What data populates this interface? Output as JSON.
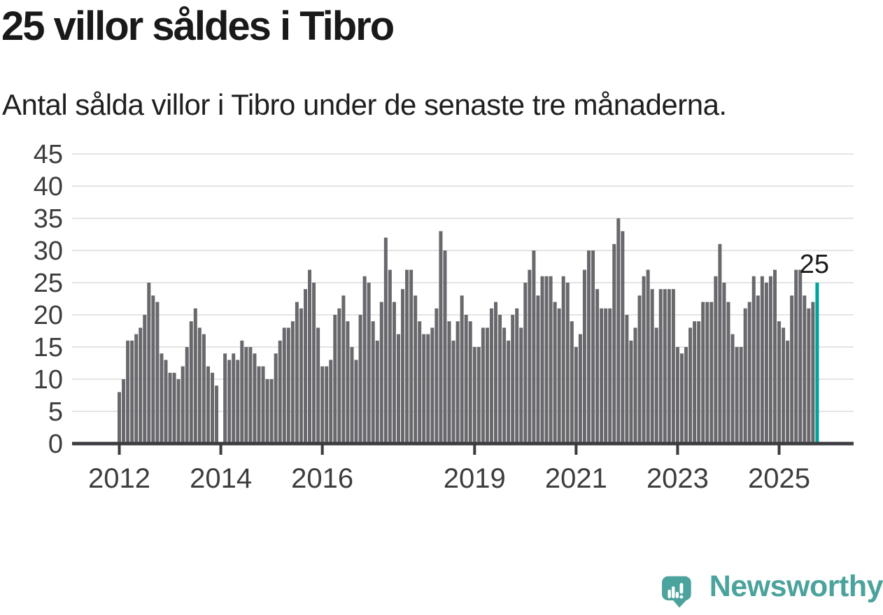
{
  "chart_data": {
    "type": "bar",
    "title": "25 villor såldes i Tibro",
    "subtitle": "Antal sålda villor i Tibro under de senaste tre månaderna.",
    "x_start": "2012-01",
    "frequency": "monthly",
    "values": [
      8,
      10,
      16,
      16,
      17,
      18,
      20,
      25,
      23,
      22,
      14,
      13,
      11,
      11,
      10,
      12,
      15,
      19,
      21,
      18,
      17,
      12,
      11,
      9,
      0,
      14,
      13,
      14,
      13,
      16,
      15,
      15,
      14,
      12,
      12,
      10,
      10,
      14,
      16,
      18,
      18,
      19,
      22,
      21,
      24,
      27,
      25,
      18,
      12,
      12,
      13,
      20,
      21,
      23,
      19,
      15,
      13,
      20,
      26,
      25,
      19,
      16,
      22,
      32,
      27,
      22,
      17,
      24,
      27,
      27,
      23,
      19,
      17,
      17,
      18,
      21,
      33,
      30,
      19,
      16,
      19,
      23,
      20,
      19,
      15,
      15,
      18,
      18,
      21,
      22,
      20,
      18,
      16,
      20,
      21,
      18,
      25,
      27,
      30,
      23,
      26,
      26,
      26,
      22,
      21,
      26,
      25,
      19,
      15,
      17,
      27,
      30,
      30,
      24,
      21,
      21,
      21,
      31,
      35,
      33,
      20,
      16,
      18,
      23,
      26,
      27,
      24,
      18,
      24,
      24,
      24,
      24,
      15,
      14,
      15,
      18,
      19,
      19,
      22,
      22,
      22,
      26,
      31,
      25,
      22,
      17,
      15,
      15,
      21,
      22,
      26,
      23,
      26,
      25,
      26,
      27,
      19,
      18,
      16,
      23,
      27,
      27,
      23,
      21,
      22,
      25
    ],
    "x_tick_years": [
      2012,
      2014,
      2016,
      2019,
      2021,
      2023,
      2025
    ],
    "y_ticks": [
      0,
      5,
      10,
      15,
      20,
      25,
      30,
      35,
      40,
      45
    ],
    "ylim": [
      0,
      45
    ],
    "grid": true,
    "bar_color": "#68686D",
    "highlight": {
      "index": 165,
      "value": 25,
      "label": "25",
      "color": "#00A49C"
    }
  },
  "branding": {
    "logo_text": "Newsworthy",
    "logo_color": "#4CA29C",
    "icon": "newsworthy-speech-bubble-chart-icon"
  }
}
